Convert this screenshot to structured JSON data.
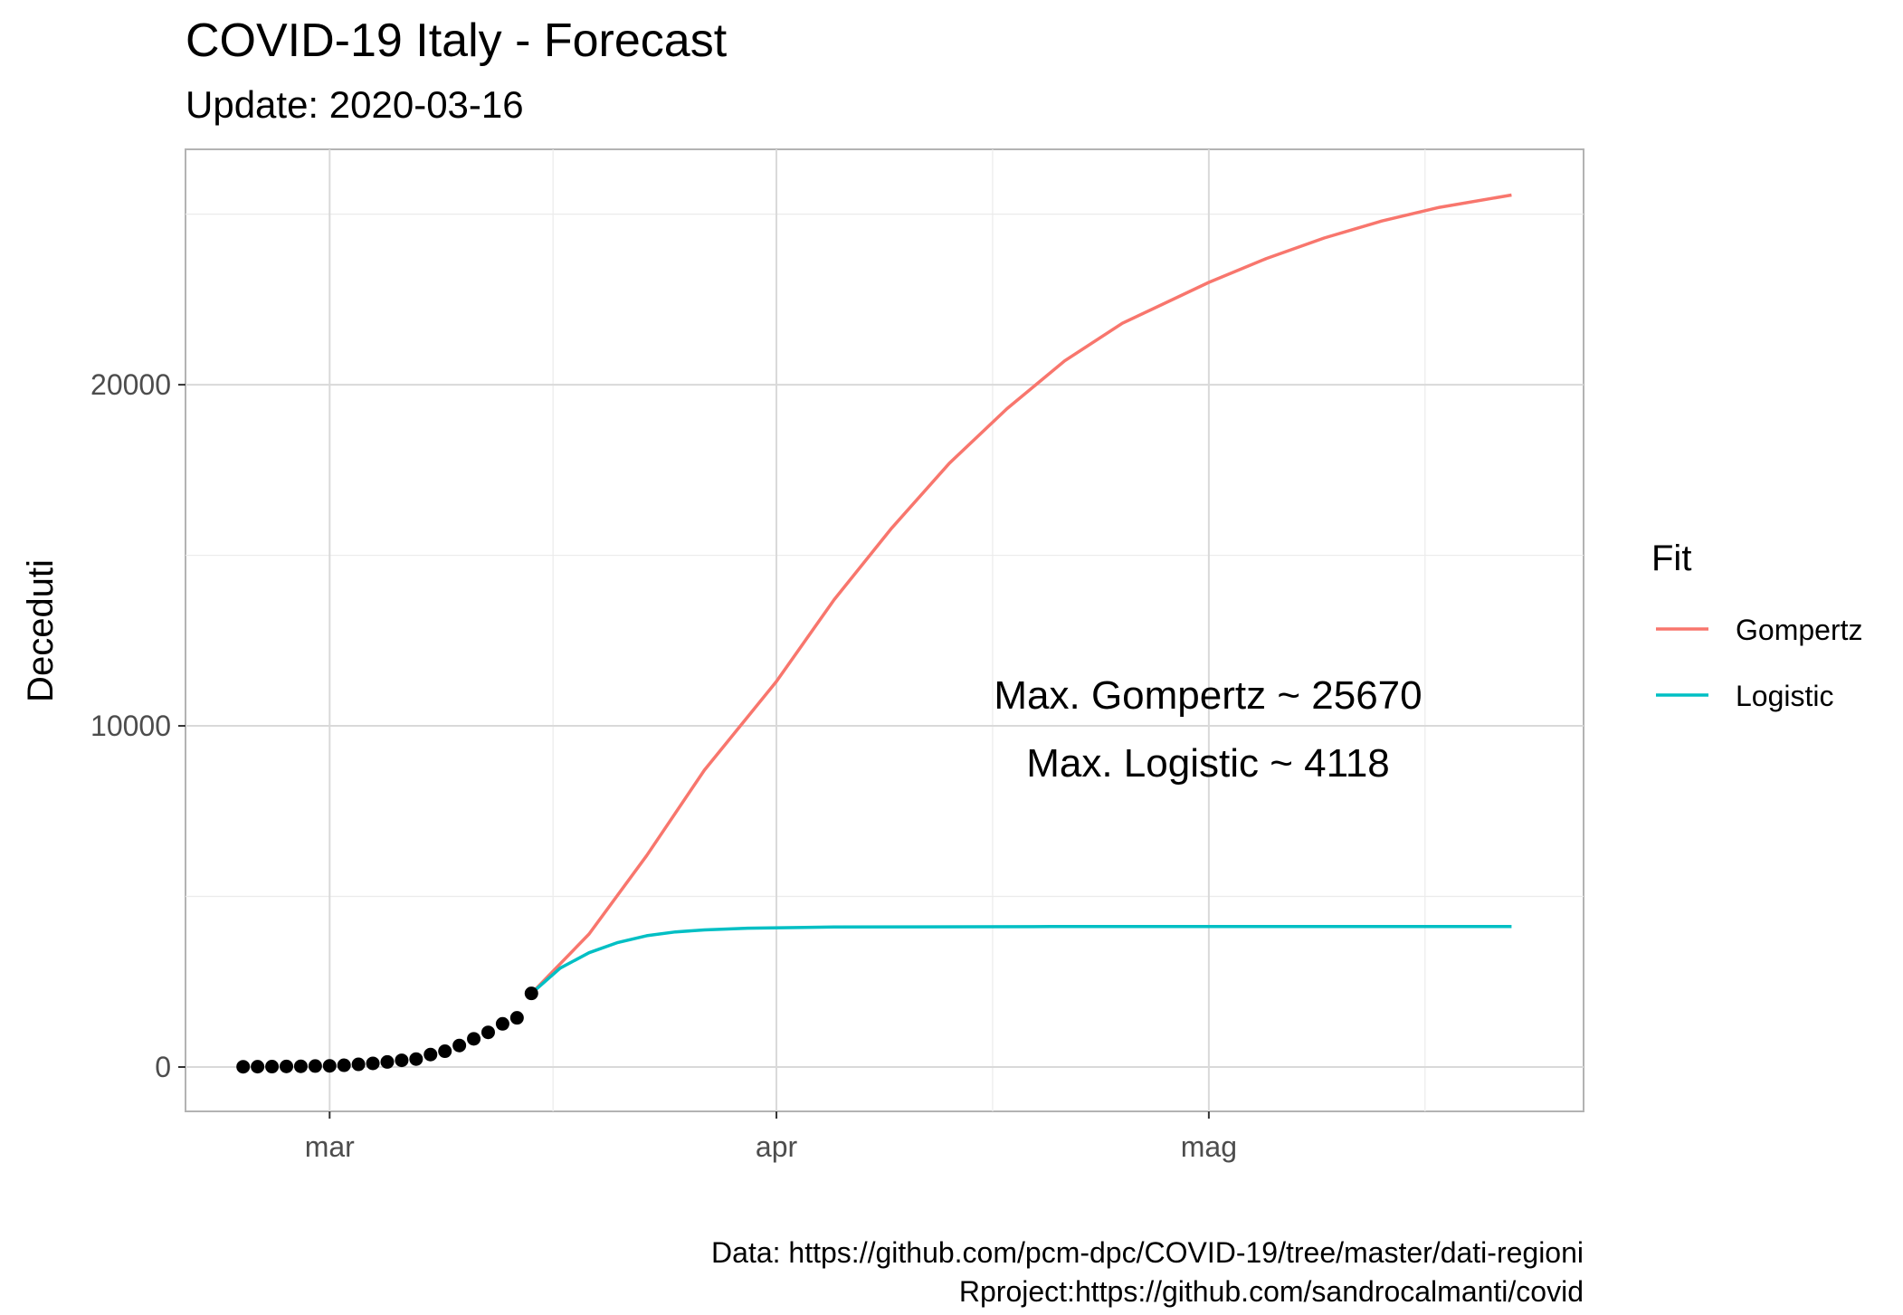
{
  "chart_data": {
    "type": "line",
    "title": "COVID-19 Italy - Forecast",
    "subtitle": "Update: 2020-03-16",
    "xlabel": "",
    "ylabel": "Deceduti",
    "x_axis": {
      "type": "date",
      "ticks": [
        "2020-03-01",
        "2020-04-01",
        "2020-05-01"
      ],
      "tick_labels": [
        "mar",
        "apr",
        "mag"
      ],
      "range": [
        "2020-02-20",
        "2020-05-27"
      ]
    },
    "y_axis": {
      "ticks": [
        0,
        10000,
        20000
      ],
      "tick_labels": [
        "0",
        "10000",
        "20000"
      ],
      "range": [
        -1300,
        26900
      ]
    },
    "grid": true,
    "legend": {
      "title": "Fit",
      "position": "right",
      "entries": [
        "Gompertz",
        "Logistic"
      ]
    },
    "annotations": [
      "Max. Gompertz ~ 25670",
      "Max. Logistic ~ 4118"
    ],
    "caption": [
      "Data: https://github.com/pcm-dpc/COVID-19/tree/master/dati-regioni",
      "Rproject:https://github.com/sandrocalmanti/covid"
    ],
    "series": [
      {
        "name": "Gompertz",
        "color": "#F8766D",
        "x": [
          "2020-03-15",
          "2020-03-19",
          "2020-03-23",
          "2020-03-27",
          "2020-04-01",
          "2020-04-05",
          "2020-04-09",
          "2020-04-13",
          "2020-04-17",
          "2020-04-21",
          "2020-04-25",
          "2020-05-01",
          "2020-05-05",
          "2020-05-09",
          "2020-05-13",
          "2020-05-17",
          "2020-05-22"
        ],
        "y": [
          2158,
          3900,
          6200,
          8700,
          11300,
          13700,
          15800,
          17700,
          19300,
          20700,
          21800,
          23000,
          23700,
          24300,
          24800,
          25200,
          25560
        ]
      },
      {
        "name": "Logistic",
        "color": "#00BFC4",
        "x": [
          "2020-03-15",
          "2020-03-17",
          "2020-03-19",
          "2020-03-21",
          "2020-03-23",
          "2020-03-25",
          "2020-03-27",
          "2020-03-30",
          "2020-04-05",
          "2020-04-20",
          "2020-05-22"
        ],
        "y": [
          2158,
          2900,
          3350,
          3650,
          3850,
          3960,
          4020,
          4070,
          4105,
          4116,
          4118
        ]
      },
      {
        "name": "",
        "style": "points",
        "color": "#000000",
        "x": [
          "2020-02-24",
          "2020-02-25",
          "2020-02-26",
          "2020-02-27",
          "2020-02-28",
          "2020-02-29",
          "2020-03-01",
          "2020-03-02",
          "2020-03-03",
          "2020-03-04",
          "2020-03-05",
          "2020-03-06",
          "2020-03-07",
          "2020-03-08",
          "2020-03-09",
          "2020-03-10",
          "2020-03-11",
          "2020-03-12",
          "2020-03-13",
          "2020-03-14",
          "2020-03-15"
        ],
        "y": [
          7,
          10,
          12,
          17,
          21,
          29,
          34,
          52,
          79,
          107,
          148,
          197,
          233,
          366,
          463,
          631,
          827,
          1016,
          1266,
          1441,
          2158
        ]
      }
    ]
  }
}
